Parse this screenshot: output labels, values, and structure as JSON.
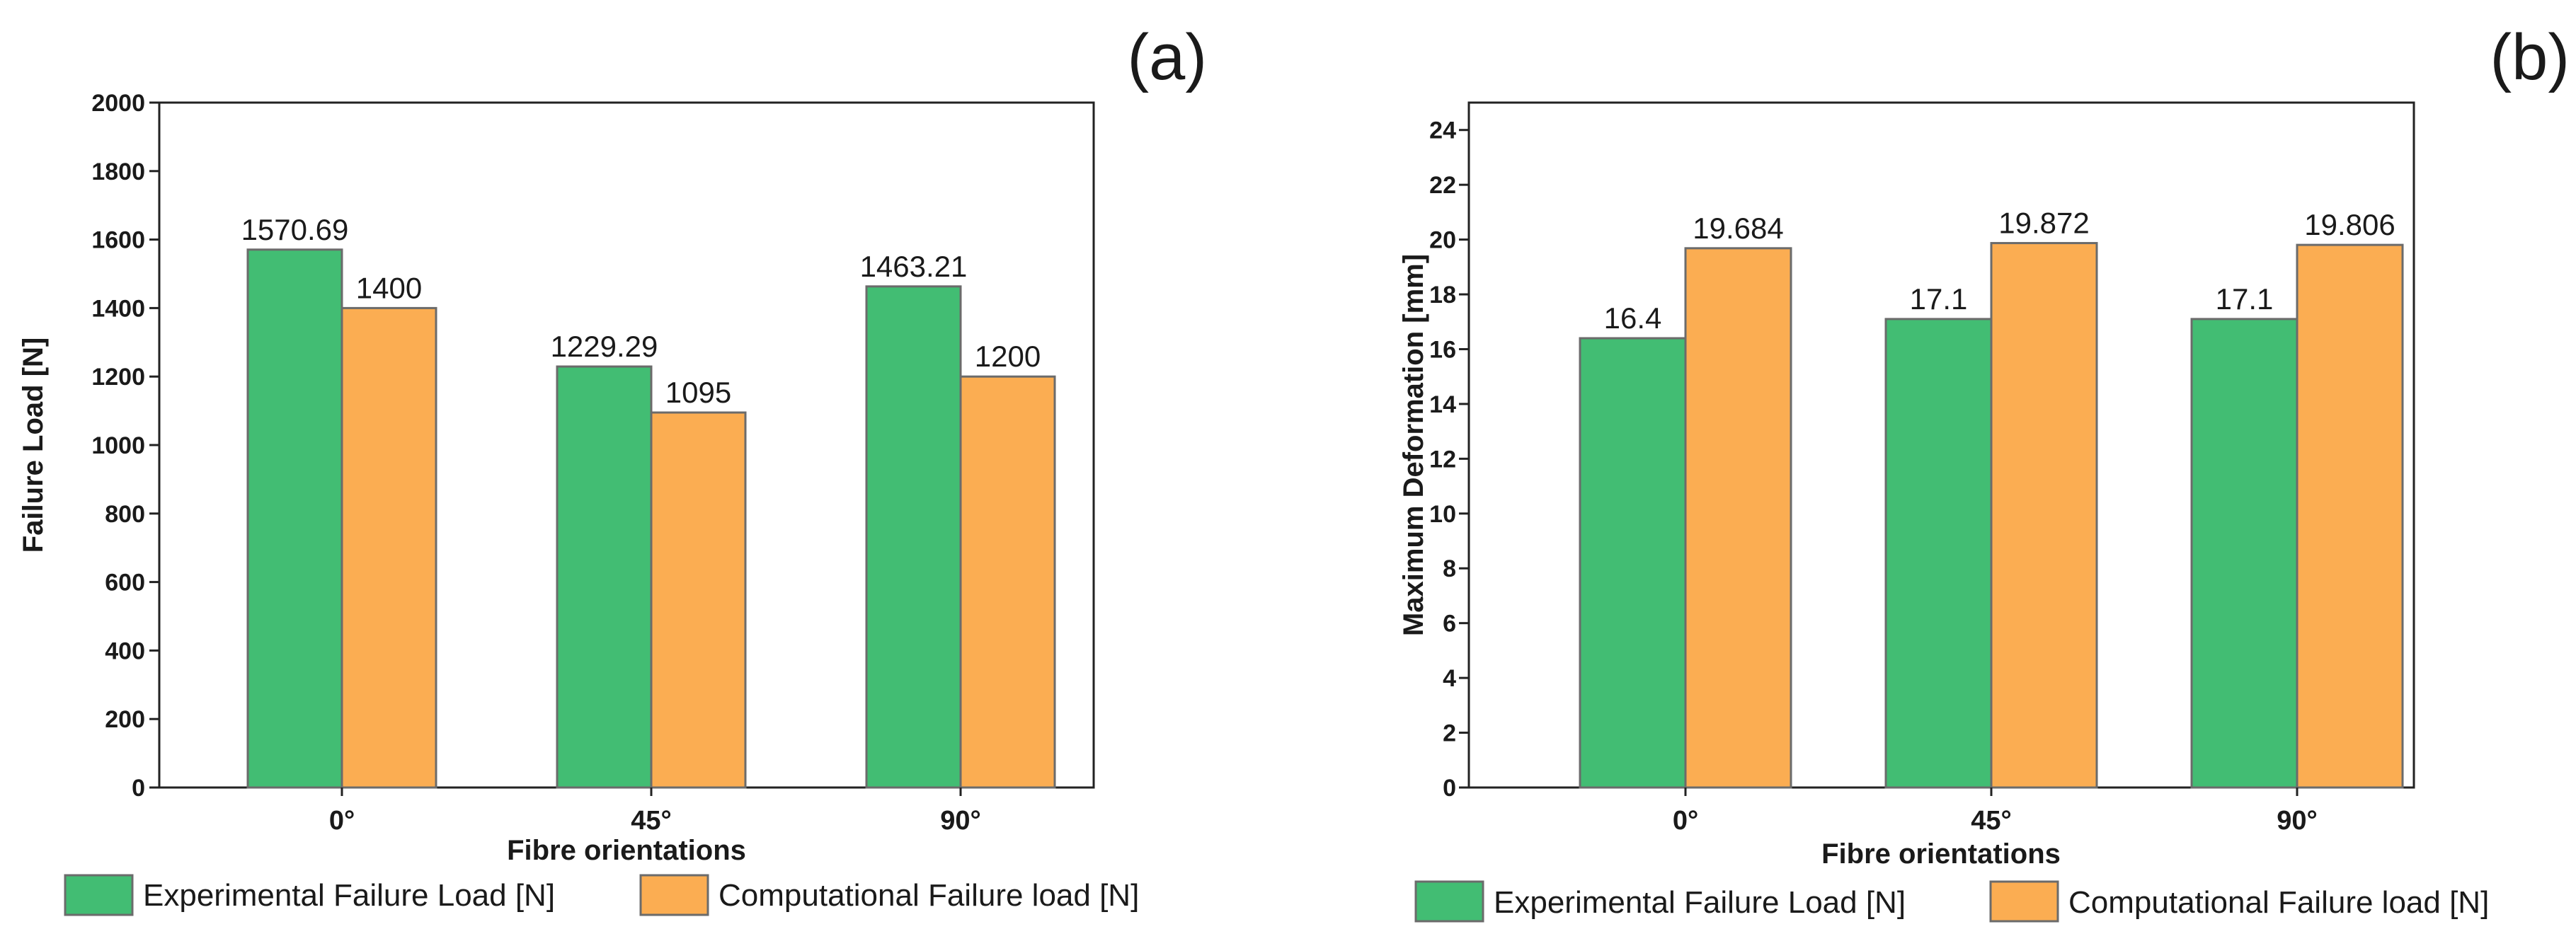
{
  "chart_data": [
    {
      "type": "bar",
      "panel_label": "(a)",
      "title": "",
      "categories": [
        "0°",
        "45°",
        "90°"
      ],
      "series": [
        {
          "name": "Experimental Failure Load [N]",
          "values": [
            1570.69,
            1229.29,
            1463.21
          ],
          "labels": [
            "1570.69",
            "1229.29",
            "1463.21"
          ],
          "color": "#42bd73"
        },
        {
          "name": "Computational Failure load [N]",
          "values": [
            1400,
            1095,
            1200
          ],
          "labels": [
            "1400",
            "1095",
            "1200"
          ],
          "color": "#fbad52"
        }
      ],
      "xlabel": "Fibre orientations",
      "ylabel": "Failure Load [N]",
      "ylim": [
        0,
        2000
      ],
      "yticks": [
        0,
        200,
        400,
        600,
        800,
        1000,
        1200,
        1400,
        1600,
        1800,
        2000
      ],
      "legend_position": "bottom"
    },
    {
      "type": "bar",
      "panel_label": "(b)",
      "title": "",
      "categories": [
        "0°",
        "45°",
        "90°"
      ],
      "series": [
        {
          "name": "Experimental Failure Load [N]",
          "values": [
            16.4,
            17.1,
            17.1
          ],
          "labels": [
            "16.4",
            "17.1",
            "17.1"
          ],
          "color": "#42bd73"
        },
        {
          "name": "Computational Failure load [N]",
          "values": [
            19.684,
            19.872,
            19.806
          ],
          "labels": [
            "19.684",
            "19.872",
            "19.806"
          ],
          "color": "#fbad52"
        }
      ],
      "xlabel": "Fibre orientations",
      "ylabel": "Maximum Deformation [mm]",
      "ylim": [
        0,
        25
      ],
      "yticks": [
        0,
        2,
        4,
        6,
        8,
        10,
        12,
        14,
        16,
        18,
        20,
        22,
        24
      ],
      "legend_position": "bottom"
    }
  ]
}
